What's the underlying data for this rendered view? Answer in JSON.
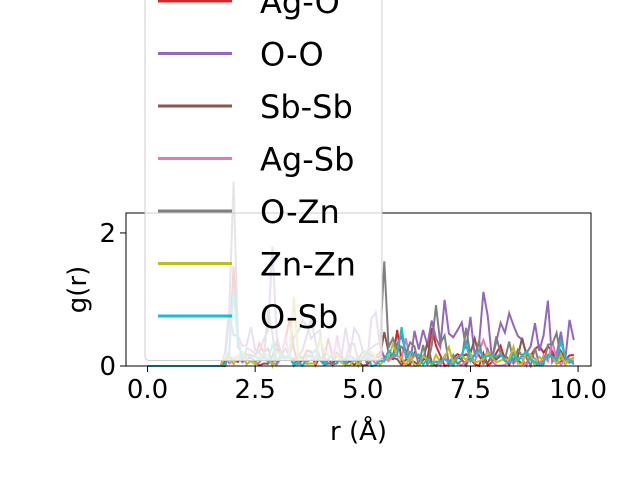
{
  "chart_data": {
    "type": "line",
    "title": "",
    "xlabel": "r (Å)",
    "ylabel": "g(r)",
    "xlim": [
      -0.5,
      10.3
    ],
    "ylim": [
      0,
      2.3
    ],
    "xticks": [
      "0.0",
      "2.5",
      "5.0",
      "7.5",
      "10.0"
    ],
    "yticks": [
      "0",
      "2"
    ],
    "grid": false,
    "legend_position": "upper-center, overlapping plot",
    "series": [
      {
        "name": "Ag-O",
        "color": "#d62728",
        "peaks": [
          [
            2.0,
            1.3
          ],
          [
            2.6,
            0.3
          ],
          [
            3.3,
            0.7
          ],
          [
            4.2,
            0.35
          ],
          [
            5.8,
            0.25
          ],
          [
            6.6,
            0.25
          ],
          [
            8.2,
            0.3
          ],
          [
            9.3,
            0.2
          ]
        ],
        "baseline": 0.12
      },
      {
        "name": "O-O",
        "color": "#9467bd",
        "peaks": [
          [
            2.9,
            1.5
          ],
          [
            3.5,
            0.4
          ],
          [
            4.6,
            0.4
          ],
          [
            5.3,
            0.55
          ],
          [
            6.2,
            0.45
          ],
          [
            6.9,
            0.7
          ],
          [
            7.8,
            0.55
          ],
          [
            8.4,
            0.5
          ],
          [
            9.3,
            0.6
          ],
          [
            9.9,
            0.4
          ]
        ],
        "baseline": 0.3
      },
      {
        "name": "Sb-Sb",
        "color": "#8c564b",
        "peaks": [
          [
            3.0,
            0.3
          ],
          [
            5.5,
            0.3
          ],
          [
            6.5,
            0.3
          ],
          [
            7.6,
            0.3
          ],
          [
            8.7,
            0.25
          ]
        ],
        "baseline": 0.08
      },
      {
        "name": "Ag-Sb",
        "color": "#e377c2",
        "peaks": [
          [
            3.2,
            0.4
          ],
          [
            4.4,
            0.25
          ],
          [
            6.0,
            0.3
          ],
          [
            7.8,
            0.25
          ],
          [
            9.4,
            0.2
          ]
        ],
        "baseline": 0.08
      },
      {
        "name": "O-Zn",
        "color": "#7f7f7f",
        "peaks": [
          [
            2.0,
            2.2
          ],
          [
            2.8,
            0.6
          ],
          [
            3.8,
            0.3
          ],
          [
            5.5,
            0.95
          ],
          [
            6.7,
            0.45
          ],
          [
            7.4,
            0.5
          ],
          [
            8.1,
            0.45
          ],
          [
            9.5,
            0.3
          ]
        ],
        "baseline": 0.2
      },
      {
        "name": "Zn-Zn",
        "color": "#bcbd22",
        "peaks": [
          [
            3.4,
            1.0
          ],
          [
            4.0,
            0.25
          ],
          [
            5.7,
            0.2
          ],
          [
            7.0,
            0.2
          ],
          [
            8.5,
            0.15
          ]
        ],
        "baseline": 0.1
      },
      {
        "name": "O-Sb",
        "color": "#17becf",
        "peaks": [
          [
            2.0,
            0.8
          ],
          [
            2.9,
            0.25
          ],
          [
            3.9,
            0.25
          ],
          [
            5.9,
            0.35
          ],
          [
            7.4,
            0.35
          ],
          [
            9.6,
            0.3
          ]
        ],
        "baseline": 0.1
      }
    ],
    "r_start": 0.0,
    "r_end": 9.9,
    "r_step": 0.1,
    "cutoff": 1.8
  }
}
